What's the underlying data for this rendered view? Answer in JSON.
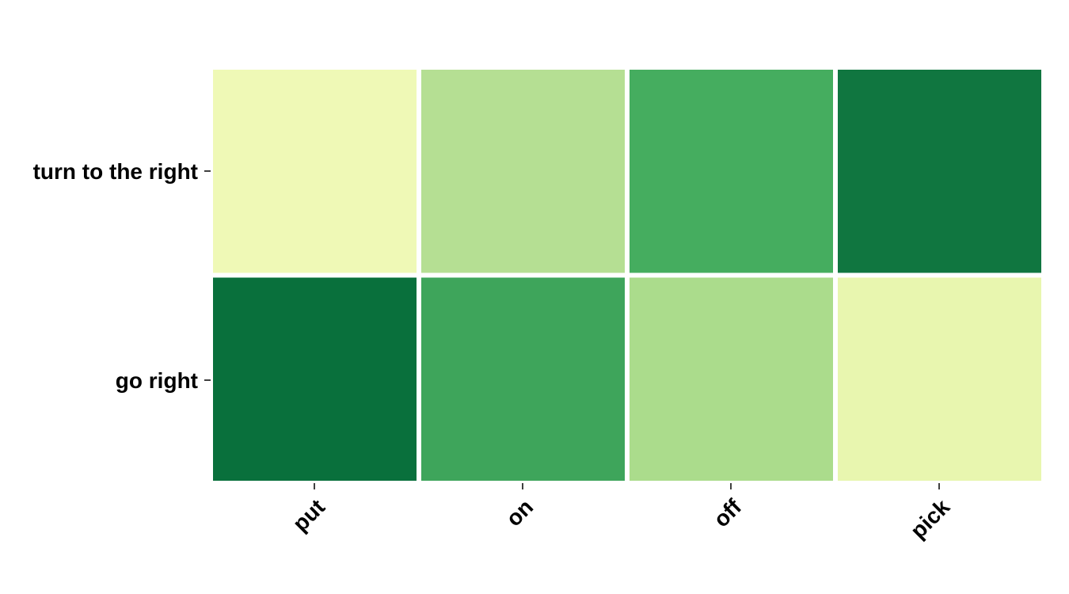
{
  "chart_data": {
    "type": "heatmap",
    "title": "",
    "xlabel": "",
    "ylabel": "",
    "x_categories": [
      "put",
      "on",
      "off",
      "pick"
    ],
    "y_categories": [
      "turn to the right",
      "go right"
    ],
    "values": [
      [
        0.05,
        0.3,
        0.65,
        0.95
      ],
      [
        0.95,
        0.7,
        0.35,
        0.05
      ]
    ],
    "colormap": [
      "#ffffe5",
      "#f7fcb9",
      "#d9f0a3",
      "#addd8e",
      "#78c679",
      "#41ab5d",
      "#238443",
      "#006837"
    ],
    "cell_colors": [
      [
        "#eff9b6",
        "#b5df93",
        "#45ad5f",
        "#107640"
      ],
      [
        "#09703c",
        "#3ea55b",
        "#abdc8c",
        "#e8f6af"
      ]
    ],
    "grid": false,
    "legend": "none",
    "x_tick_rotation": -45
  }
}
